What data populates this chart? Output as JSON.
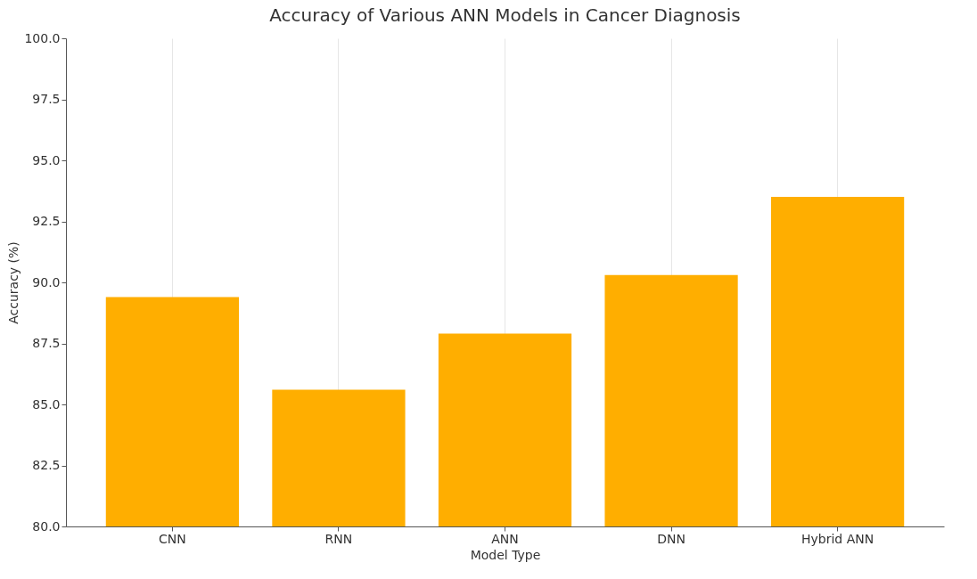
{
  "chart_data": {
    "type": "bar",
    "title": "Accuracy of Various ANN Models in Cancer Diagnosis",
    "xlabel": "Model Type",
    "ylabel": "Accuracy (%)",
    "categories": [
      "CNN",
      "RNN",
      "ANN",
      "DNN",
      "Hybrid ANN"
    ],
    "values": [
      89.4,
      85.6,
      87.9,
      90.3,
      93.5
    ],
    "color": "#ffae00",
    "ylim": [
      80,
      100
    ],
    "yticks": [
      {
        "value": 80,
        "label": "80.0"
      },
      {
        "value": 82.5,
        "label": "82.5"
      },
      {
        "value": 85,
        "label": "85.0"
      },
      {
        "value": 87.5,
        "label": "87.5"
      },
      {
        "value": 90,
        "label": "90.0"
      },
      {
        "value": 92.5,
        "label": "92.5"
      },
      {
        "value": 95,
        "label": "95.0"
      },
      {
        "value": 97.5,
        "label": "97.5"
      },
      {
        "value": 100,
        "label": "100.0"
      }
    ],
    "grid": "x"
  }
}
